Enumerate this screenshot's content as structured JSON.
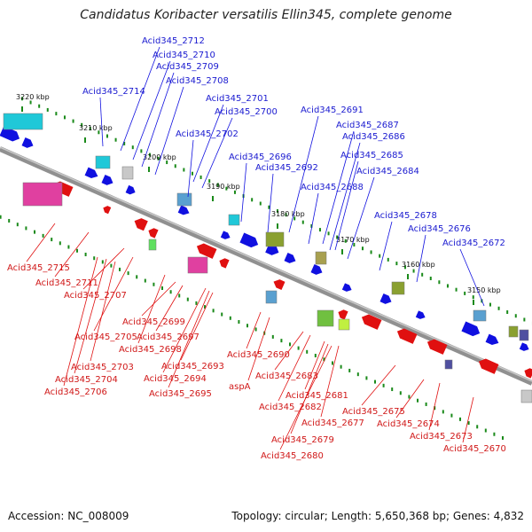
{
  "title": "Candidatus Koribacter versatilis Ellin345, complete genome",
  "footer": {
    "accession": "Accession: NC_008009",
    "summary": "Topology: circular; Length: 5,650,368 bp; Genes: 4,832"
  },
  "colors": {
    "forward_strand": "#1010e0",
    "reverse_strand": "#e01010",
    "backbone": "#909090",
    "tick": "#1a8a1a"
  },
  "scale_ticks": [
    "3220 kbp",
    "3210 kbp",
    "3200 kbp",
    "3190 kbp",
    "3180 kbp",
    "3170 kbp",
    "3160 kbp",
    "3150 kbp"
  ],
  "forward_labels": [
    "Acid345_2712",
    "Acid345_2710",
    "Acid345_2709",
    "Acid345_2714",
    "Acid345_2708",
    "Acid345_2701",
    "Acid345_2700",
    "Acid345_2702",
    "Acid345_2691",
    "Acid345_2687",
    "Acid345_2686",
    "Acid345_2696",
    "Acid345_2685",
    "Acid345_2692",
    "Acid345_2684",
    "Acid345_2688",
    "Acid345_2678",
    "Acid345_2676",
    "Acid345_2672"
  ],
  "reverse_labels": [
    "Acid345_2715",
    "Acid345_2711",
    "Acid345_2707",
    "Acid345_2699",
    "Acid345_2705",
    "Acid345_2697",
    "Acid345_2698",
    "Acid345_2703",
    "Acid345_2693",
    "Acid345_2704",
    "Acid345_2694",
    "Acid345_2706",
    "Acid345_2695",
    "Acid345_2690",
    "aspA",
    "Acid345_2683",
    "Acid345_2681",
    "Acid345_2682",
    "Acid345_2677",
    "Acid345_2675",
    "Acid345_2674",
    "Acid345_2673",
    "Acid345_2679",
    "Acid345_2670",
    "Acid345_2680"
  ]
}
